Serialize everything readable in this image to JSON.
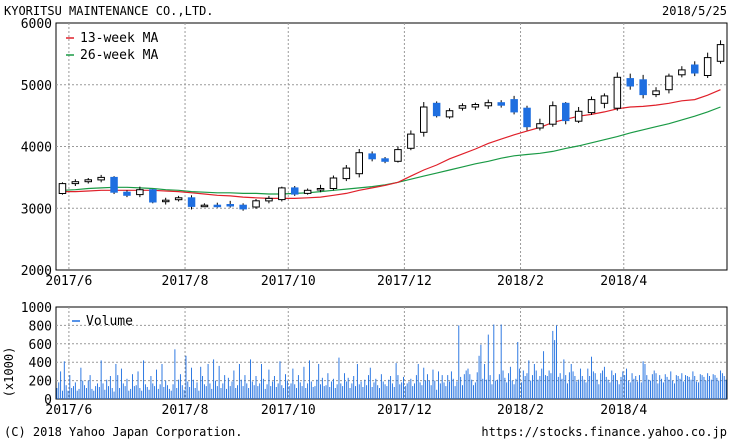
{
  "header": {
    "company": "KYORITSU MAINTENANCE CO.,LTD.",
    "date": "2018/5/25"
  },
  "footer": {
    "copyright": "(C) 2018 Yahoo Japan Corporation.",
    "url": "https://stocks.finance.yahoo.co.jp"
  },
  "colors": {
    "up": "#ffffff",
    "down": "#1f6fe0",
    "ma13": "#e0202a",
    "ma26": "#1a9a45",
    "volume": "#1f6fe0",
    "grid": "#9a9a9a"
  },
  "chart_data": [
    {
      "type": "candlestick",
      "legend": [
        "13-week MA",
        "26-week MA"
      ],
      "ylim": [
        2000,
        6000
      ],
      "yticks": [
        2000,
        3000,
        4000,
        5000,
        6000
      ],
      "xticks": [
        "2017/6",
        "2017/8",
        "2017/10",
        "2017/12",
        "2018/2",
        "2018/4"
      ],
      "weeks": 52,
      "candles": [
        [
          3240,
          3420,
          3220,
          3400
        ],
        [
          3400,
          3470,
          3360,
          3430
        ],
        [
          3430,
          3490,
          3400,
          3460
        ],
        [
          3460,
          3540,
          3420,
          3500
        ],
        [
          3500,
          3520,
          3230,
          3260
        ],
        [
          3260,
          3290,
          3180,
          3210
        ],
        [
          3220,
          3350,
          3180,
          3300
        ],
        [
          3300,
          3310,
          3080,
          3100
        ],
        [
          3110,
          3170,
          3060,
          3130
        ],
        [
          3140,
          3200,
          3110,
          3170
        ],
        [
          3170,
          3210,
          2980,
          3030
        ],
        [
          3030,
          3080,
          3020,
          3050
        ],
        [
          3050,
          3090,
          3010,
          3040
        ],
        [
          3060,
          3120,
          3010,
          3050
        ],
        [
          3050,
          3080,
          2960,
          2990
        ],
        [
          3020,
          3150,
          2990,
          3120
        ],
        [
          3120,
          3200,
          3080,
          3160
        ],
        [
          3140,
          3350,
          3110,
          3330
        ],
        [
          3330,
          3360,
          3200,
          3230
        ],
        [
          3240,
          3320,
          3220,
          3290
        ],
        [
          3300,
          3380,
          3260,
          3320
        ],
        [
          3320,
          3530,
          3290,
          3490
        ],
        [
          3480,
          3700,
          3440,
          3650
        ],
        [
          3560,
          3960,
          3500,
          3900
        ],
        [
          3880,
          3920,
          3760,
          3800
        ],
        [
          3800,
          3830,
          3730,
          3760
        ],
        [
          3760,
          4000,
          3740,
          3950
        ],
        [
          3970,
          4260,
          3940,
          4200
        ],
        [
          4230,
          4720,
          4160,
          4640
        ],
        [
          4700,
          4730,
          4470,
          4500
        ],
        [
          4480,
          4620,
          4450,
          4580
        ],
        [
          4620,
          4700,
          4580,
          4660
        ],
        [
          4640,
          4710,
          4590,
          4680
        ],
        [
          4660,
          4760,
          4610,
          4710
        ],
        [
          4710,
          4750,
          4630,
          4670
        ],
        [
          4760,
          4820,
          4520,
          4560
        ],
        [
          4620,
          4660,
          4260,
          4320
        ],
        [
          4300,
          4450,
          4260,
          4370
        ],
        [
          4360,
          4730,
          4320,
          4660
        ],
        [
          4700,
          4720,
          4360,
          4420
        ],
        [
          4410,
          4640,
          4380,
          4570
        ],
        [
          4550,
          4810,
          4510,
          4760
        ],
        [
          4700,
          4860,
          4620,
          4820
        ],
        [
          4620,
          5200,
          4580,
          5120
        ],
        [
          5100,
          5180,
          4920,
          4980
        ],
        [
          5080,
          5160,
          4780,
          4840
        ],
        [
          4840,
          4960,
          4800,
          4900
        ],
        [
          4920,
          5180,
          4860,
          5140
        ],
        [
          5160,
          5300,
          5120,
          5240
        ],
        [
          5320,
          5380,
          5140,
          5190
        ],
        [
          5150,
          5520,
          5110,
          5440
        ],
        [
          5380,
          5720,
          5340,
          5650
        ]
      ],
      "ma13": [
        3270,
        3270,
        3280,
        3290,
        3290,
        3290,
        3290,
        3290,
        3280,
        3270,
        3250,
        3230,
        3210,
        3200,
        3180,
        3170,
        3160,
        3160,
        3160,
        3170,
        3180,
        3210,
        3240,
        3290,
        3330,
        3370,
        3420,
        3520,
        3620,
        3700,
        3800,
        3880,
        3960,
        4050,
        4120,
        4190,
        4250,
        4310,
        4390,
        4440,
        4490,
        4520,
        4560,
        4610,
        4640,
        4650,
        4670,
        4700,
        4740,
        4760,
        4830,
        4920
      ],
      "ma26": [
        3290,
        3300,
        3320,
        3330,
        3340,
        3340,
        3330,
        3320,
        3300,
        3290,
        3270,
        3260,
        3250,
        3250,
        3240,
        3240,
        3230,
        3230,
        3240,
        3250,
        3270,
        3290,
        3310,
        3330,
        3350,
        3380,
        3420,
        3470,
        3520,
        3570,
        3620,
        3670,
        3720,
        3760,
        3810,
        3850,
        3870,
        3890,
        3920,
        3970,
        4010,
        4060,
        4110,
        4160,
        4220,
        4270,
        4320,
        4370,
        4430,
        4490,
        4560,
        4640
      ]
    },
    {
      "type": "bar",
      "title": "Volume",
      "ylabel": "(x1000)",
      "ylim": [
        0,
        1000
      ],
      "yticks": [
        0,
        200,
        400,
        600,
        800,
        1000
      ],
      "xticks": [
        "2017/6",
        "2017/8",
        "2017/10",
        "2017/12",
        "2018/2",
        "2018/4"
      ],
      "values": [
        120,
        180,
        300,
        90,
        410,
        150,
        90,
        260,
        120,
        140,
        180,
        90,
        110,
        340,
        200,
        150,
        120,
        200,
        260,
        110,
        90,
        140,
        170,
        130,
        420,
        170,
        100,
        210,
        140,
        250,
        120,
        80,
        380,
        260,
        120,
        330,
        170,
        140,
        220,
        90,
        110,
        270,
        140,
        150,
        300,
        120,
        90,
        420,
        160,
        130,
        100,
        250,
        170,
        140,
        320,
        110,
        160,
        380,
        130,
        200,
        150,
        110,
        90,
        160,
        540,
        120,
        210,
        270,
        150,
        100,
        470,
        190,
        130,
        340,
        210,
        120,
        180,
        90,
        350,
        250,
        160,
        140,
        380,
        170,
        110,
        430,
        200,
        140,
        360,
        120,
        170,
        260,
        110,
        230,
        140,
        190,
        310,
        120,
        150,
        380,
        210,
        140,
        260,
        170,
        120,
        430,
        190,
        150,
        250,
        140,
        170,
        380,
        220,
        110,
        160,
        320,
        140,
        190,
        250,
        130,
        170,
        410,
        150,
        120,
        270,
        200,
        140,
        170,
        330,
        160,
        120,
        260,
        180,
        140,
        350,
        120,
        170,
        420,
        190,
        130,
        140,
        210,
        380,
        160,
        230,
        140,
        150,
        280,
        130,
        190,
        220,
        120,
        160,
        450,
        170,
        140,
        280,
        190,
        230,
        120,
        170,
        250,
        140,
        380,
        160,
        190,
        130,
        210,
        150,
        260,
        340,
        130,
        180,
        220,
        150,
        120,
        270,
        190,
        160,
        140,
        210,
        250,
        170,
        130,
        390,
        260,
        160,
        180,
        240,
        140,
        170,
        190,
        220,
        140,
        170,
        260,
        380,
        180,
        150,
        340,
        200,
        270,
        200,
        150,
        320,
        200,
        100,
        300,
        170,
        260,
        180,
        140,
        260,
        190,
        300,
        220,
        140,
        190,
        800,
        240,
        150,
        270,
        310,
        330,
        270,
        210,
        150,
        180,
        290,
        470,
        590,
        220,
        380,
        210,
        700,
        260,
        160,
        810,
        200,
        210,
        270,
        810,
        310,
        230,
        180,
        280,
        350,
        200,
        160,
        220,
        620,
        330,
        180,
        310,
        250,
        280,
        420,
        200,
        260,
        380,
        310,
        210,
        250,
        330,
        520,
        260,
        250,
        310,
        280,
        740,
        640,
        800,
        240,
        280,
        220,
        430,
        260,
        170,
        290,
        380,
        300,
        250,
        190,
        210,
        330,
        250,
        210,
        180,
        330,
        250,
        460,
        300,
        280,
        210,
        160,
        280,
        310,
        350,
        240,
        210,
        180,
        310,
        260,
        280,
        200,
        160,
        240,
        300,
        260,
        330,
        200,
        180,
        280,
        220,
        250,
        190,
        260,
        180,
        410,
        380,
        260,
        210,
        200,
        270,
        310,
        280,
        170,
        260,
        220,
        180,
        270,
        240,
        210,
        300,
        200,
        170,
        260,
        250,
        220,
        280,
        190,
        260,
        250,
        240,
        210,
        300,
        250,
        190,
        180,
        270,
        260,
        240,
        200,
        280,
        250,
        210,
        270,
        260,
        230,
        200,
        310,
        280,
        250,
        210
      ]
    }
  ]
}
